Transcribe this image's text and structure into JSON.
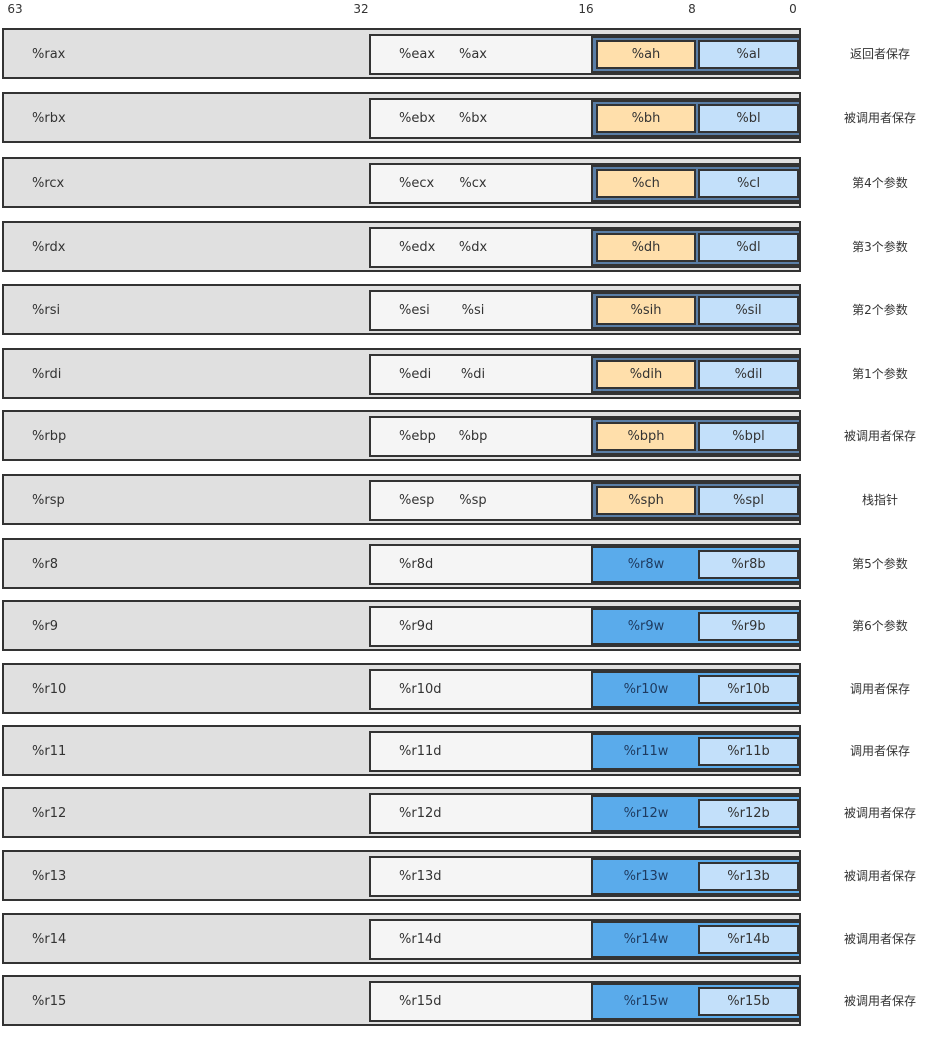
{
  "bit_labels": [
    "63",
    "32",
    "16",
    "8",
    "0"
  ],
  "registers": [
    {
      "r64": "%rax",
      "r32": "%eax",
      "r16": "%ax",
      "high8": "%ah",
      "low8": "%al",
      "role": "返回者保存"
    },
    {
      "r64": "%rbx",
      "r32": "%ebx",
      "r16": "%bx",
      "high8": "%bh",
      "low8": "%bl",
      "role": "被调用者保存"
    },
    {
      "r64": "%rcx",
      "r32": "%ecx",
      "r16": "%cx",
      "high8": "%ch",
      "low8": "%cl",
      "role": "第4个参数"
    },
    {
      "r64": "%rdx",
      "r32": "%edx",
      "r16": "%dx",
      "high8": "%dh",
      "low8": "%dl",
      "role": "第3个参数"
    },
    {
      "r64": "%rsi",
      "r32": "%esi",
      "r16": "%si",
      "high8": "%sih",
      "low8": "%sil",
      "role": "第2个参数"
    },
    {
      "r64": "%rdi",
      "r32": "%edi",
      "r16": "%di",
      "high8": "%dih",
      "low8": "%dil",
      "role": "第1个参数"
    },
    {
      "r64": "%rbp",
      "r32": "%ebp",
      "r16": "%bp",
      "high8": "%bph",
      "low8": "%bpl",
      "role": "被调用者保存"
    },
    {
      "r64": "%rsp",
      "r32": "%esp",
      "r16": "%sp",
      "high8": "%sph",
      "low8": "%spl",
      "role": "栈指针"
    },
    {
      "r64": "%r8",
      "r32": "%r8d",
      "r16w": "%r8w",
      "low8": "%r8b",
      "role": "第5个参数"
    },
    {
      "r64": "%r9",
      "r32": "%r9d",
      "r16w": "%r9w",
      "low8": "%r9b",
      "role": "第6个参数"
    },
    {
      "r64": "%r10",
      "r32": "%r10d",
      "r16w": "%r10w",
      "low8": "%r10b",
      "role": "调用者保存"
    },
    {
      "r64": "%r11",
      "r32": "%r11d",
      "r16w": "%r11w",
      "low8": "%r11b",
      "role": "调用者保存"
    },
    {
      "r64": "%r12",
      "r32": "%r12d",
      "r16w": "%r12w",
      "low8": "%r12b",
      "role": "被调用者保存"
    },
    {
      "r64": "%r13",
      "r32": "%r13d",
      "r16w": "%r13w",
      "low8": "%r13b",
      "role": "被调用者保存"
    },
    {
      "r64": "%r14",
      "r32": "%r14d",
      "r16w": "%r14w",
      "low8": "%r14b",
      "role": "被调用者保存"
    },
    {
      "r64": "%r15",
      "r32": "%r15d",
      "r16w": "%r15w",
      "low8": "%r15b",
      "role": "被调用者保存"
    }
  ],
  "colors": {
    "reg64_fill": "#e0e0e0",
    "reg32_fill": "#f5f5f5",
    "high8_fill": "#ffdfab",
    "low8_fill": "#c3e0fa",
    "reg16_new_fill": "#5aabeb",
    "border": "#333333"
  }
}
